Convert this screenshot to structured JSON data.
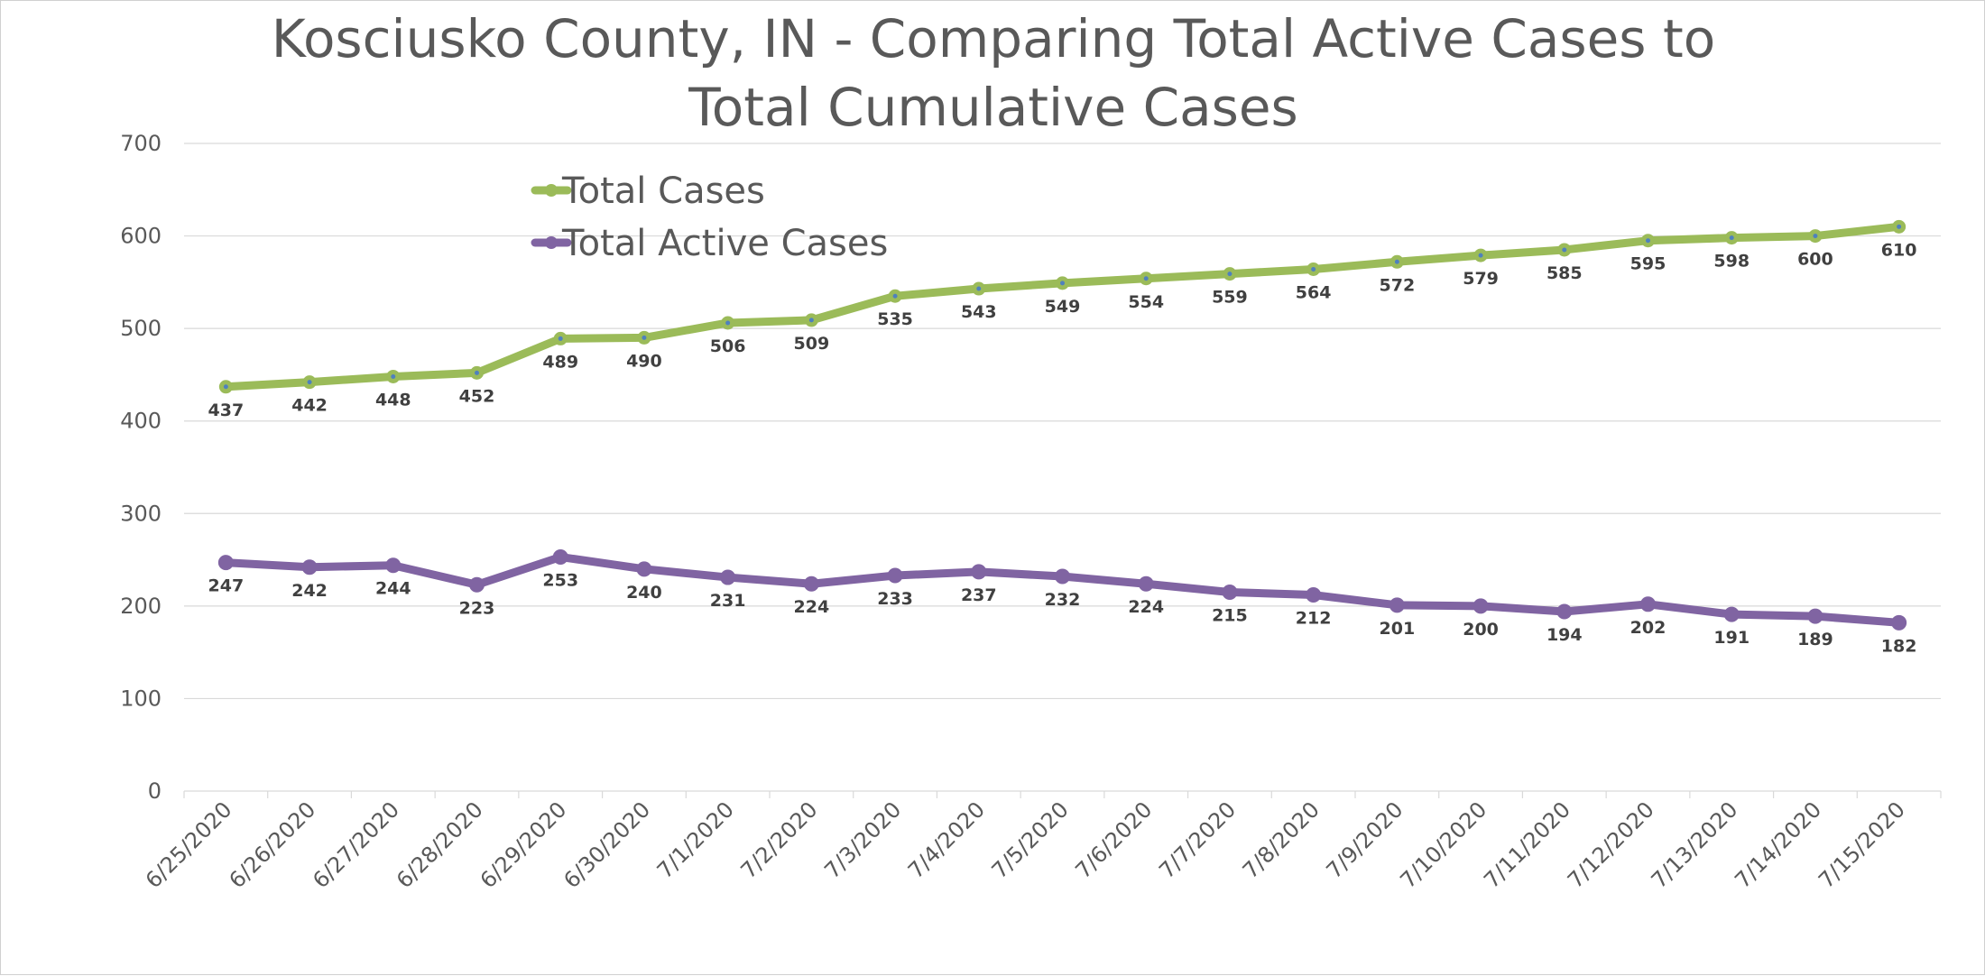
{
  "chart_data": {
    "type": "line",
    "title_lines": [
      "Kosciusko County, IN - Comparing Total Active Cases to",
      "Total Cumulative Cases"
    ],
    "xlabel": "",
    "ylabel": "",
    "ylim": [
      0,
      700
    ],
    "yticks": [
      0,
      100,
      200,
      300,
      400,
      500,
      600,
      700
    ],
    "grid": true,
    "legend_position": "top-left",
    "categories": [
      "6/25/2020",
      "6/26/2020",
      "6/27/2020",
      "6/28/2020",
      "6/29/2020",
      "6/30/2020",
      "7/1/2020",
      "7/2/2020",
      "7/3/2020",
      "7/4/2020",
      "7/5/2020",
      "7/6/2020",
      "7/7/2020",
      "7/8/2020",
      "7/9/2020",
      "7/10/2020",
      "7/11/2020",
      "7/12/2020",
      "7/13/2020",
      "7/14/2020",
      "7/15/2020"
    ],
    "series": [
      {
        "name": "Total Cases",
        "color": "#9bbb59",
        "values": [
          437,
          442,
          448,
          452,
          489,
          490,
          506,
          509,
          535,
          543,
          549,
          554,
          559,
          564,
          572,
          579,
          585,
          595,
          598,
          600,
          610
        ]
      },
      {
        "name": "Total Active Cases",
        "color": "#8064a2",
        "values": [
          247,
          242,
          244,
          223,
          253,
          240,
          231,
          224,
          233,
          237,
          232,
          224,
          215,
          212,
          201,
          200,
          194,
          202,
          191,
          189,
          182
        ]
      }
    ]
  }
}
